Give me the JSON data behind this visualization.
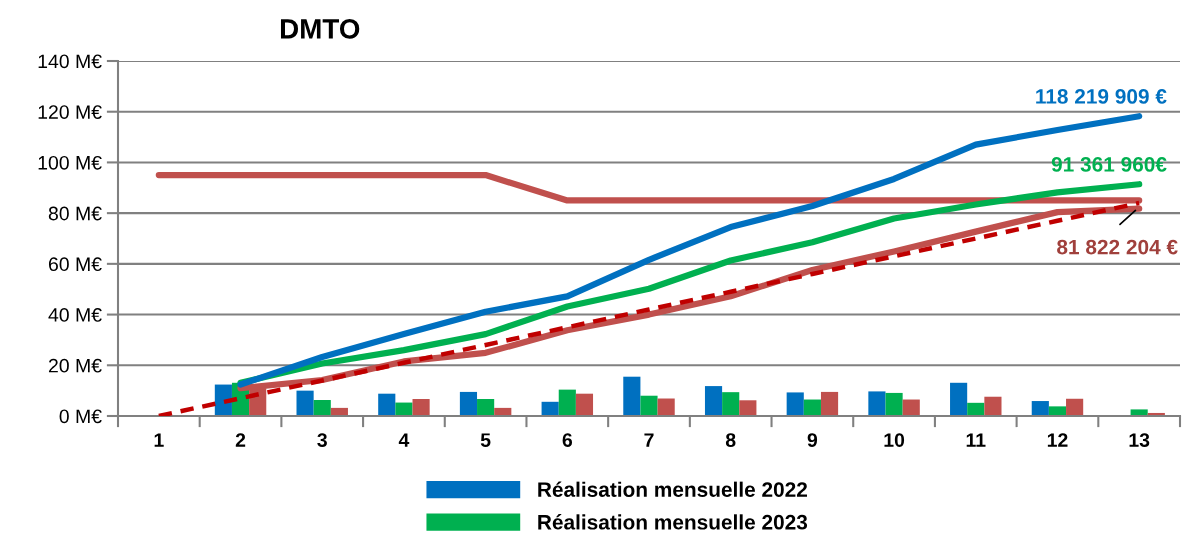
{
  "chart_data": {
    "type": "bar",
    "title": "DMTO",
    "categories": [
      "1",
      "2",
      "3",
      "4",
      "5",
      "6",
      "7",
      "8",
      "9",
      "10",
      "11",
      "12",
      "13"
    ],
    "ylim": [
      0,
      140
    ],
    "yticks": [
      {
        "value": 0,
        "label": "0 M€"
      },
      {
        "value": 20,
        "label": "20 M€"
      },
      {
        "value": 40,
        "label": "40 M€"
      },
      {
        "value": 60,
        "label": "60 M€"
      },
      {
        "value": 80,
        "label": "80 M€"
      },
      {
        "value": 100,
        "label": "100 M€"
      },
      {
        "value": 120,
        "label": "120 M€"
      },
      {
        "value": 140,
        "label": "140 M€"
      }
    ],
    "grid": "y",
    "legend": "bottom",
    "series": [
      {
        "name": "Réalisation mensuelle 2022",
        "color": "#0070c0",
        "values": [
          null,
          12.4,
          10.0,
          8.8,
          9.5,
          5.6,
          15.5,
          11.8,
          9.3,
          9.7,
          13.1,
          5.9,
          null
        ]
      },
      {
        "name": "Réalisation mensuelle 2023",
        "color": "#00b050",
        "values": [
          null,
          13.1,
          6.3,
          5.3,
          6.7,
          10.4,
          8.0,
          9.4,
          6.5,
          9.1,
          5.2,
          3.8,
          2.6
        ]
      },
      {
        "color": "#c0504d",
        "values": [
          null,
          11.0,
          3.2,
          6.7,
          3.2,
          8.8,
          6.9,
          6.2,
          9.5,
          6.5,
          7.6,
          6.8,
          1.2
        ]
      },
      {
        "type": "line",
        "color": "#c0504d",
        "values": [
          95,
          95,
          95,
          95,
          95,
          85,
          85,
          85,
          85,
          85,
          85,
          85,
          85
        ]
      },
      {
        "type": "line",
        "color": "#c0504d",
        "values": [
          null,
          11.0,
          14.2,
          21.5,
          24.9,
          33.8,
          40.0,
          47.2,
          57.6,
          64.9,
          72.7,
          80.4,
          81.8
        ]
      },
      {
        "type": "line",
        "color": "#c00000",
        "line_style": "dashed",
        "values": [
          0,
          7,
          14,
          21,
          28,
          35,
          42,
          49,
          56,
          63,
          70,
          77,
          84
        ]
      },
      {
        "type": "line",
        "color": "#00b050",
        "values": [
          null,
          13.1,
          20.7,
          26.0,
          32.3,
          43.2,
          50.2,
          61.3,
          68.5,
          77.9,
          83.4,
          88.2,
          91.4
        ]
      },
      {
        "type": "line",
        "color": "#0070c0",
        "values": [
          null,
          12.4,
          23.3,
          32.3,
          41.1,
          47.2,
          61.6,
          74.5,
          82.8,
          93.5,
          107.0,
          112.8,
          118.2
        ]
      }
    ],
    "annotations": [
      {
        "text": "118 219 909 €",
        "x": "13",
        "y": 118.2
      },
      {
        "text": "91 361 960€",
        "x": "13",
        "y": 91.4
      },
      {
        "text": "81 822 204 €",
        "x": "13",
        "y": 81.8
      }
    ]
  }
}
